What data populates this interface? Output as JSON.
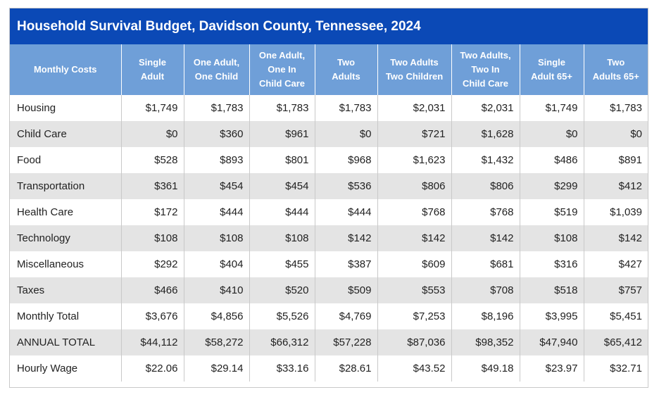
{
  "title": "Household Survival Budget, Davidson County, Tennessee, 2024",
  "colors": {
    "title_bg": "#0b49b6",
    "header_bg": "#6f9fd8",
    "stripe": "#e4e4e4"
  },
  "chart_data": {
    "type": "table",
    "title": "Household Survival Budget, Davidson County, Tennessee, 2024",
    "columns": [
      "Monthly Costs",
      "Single\nAdult",
      "One Adult,\nOne Child",
      "One Adult,\nOne In\nChild Care",
      "Two\nAdults",
      "Two Adults\nTwo Children",
      "Two Adults,\nTwo In\nChild Care",
      "Single\nAdult 65+",
      "Two\nAdults 65+"
    ],
    "rows": [
      [
        "Housing",
        "$1,749",
        "$1,783",
        "$1,783",
        "$1,783",
        "$2,031",
        "$2,031",
        "$1,749",
        "$1,783"
      ],
      [
        "Child Care",
        "$0",
        "$360",
        "$961",
        "$0",
        "$721",
        "$1,628",
        "$0",
        "$0"
      ],
      [
        "Food",
        "$528",
        "$893",
        "$801",
        "$968",
        "$1,623",
        "$1,432",
        "$486",
        "$891"
      ],
      [
        "Transportation",
        "$361",
        "$454",
        "$454",
        "$536",
        "$806",
        "$806",
        "$299",
        "$412"
      ],
      [
        "Health Care",
        "$172",
        "$444",
        "$444",
        "$444",
        "$768",
        "$768",
        "$519",
        "$1,039"
      ],
      [
        "Technology",
        "$108",
        "$108",
        "$108",
        "$142",
        "$142",
        "$142",
        "$108",
        "$142"
      ],
      [
        "Miscellaneous",
        "$292",
        "$404",
        "$455",
        "$387",
        "$609",
        "$681",
        "$316",
        "$427"
      ],
      [
        "Taxes",
        "$466",
        "$410",
        "$520",
        "$509",
        "$553",
        "$708",
        "$518",
        "$757"
      ],
      [
        "Monthly Total",
        "$3,676",
        "$4,856",
        "$5,526",
        "$4,769",
        "$7,253",
        "$8,196",
        "$3,995",
        "$5,451"
      ],
      [
        "ANNUAL TOTAL",
        "$44,112",
        "$58,272",
        "$66,312",
        "$57,228",
        "$87,036",
        "$98,352",
        "$47,940",
        "$65,412"
      ],
      [
        "Hourly Wage",
        "$22.06",
        "$29.14",
        "$33.16",
        "$28.61",
        "$43.52",
        "$49.18",
        "$23.97",
        "$32.71"
      ]
    ]
  }
}
